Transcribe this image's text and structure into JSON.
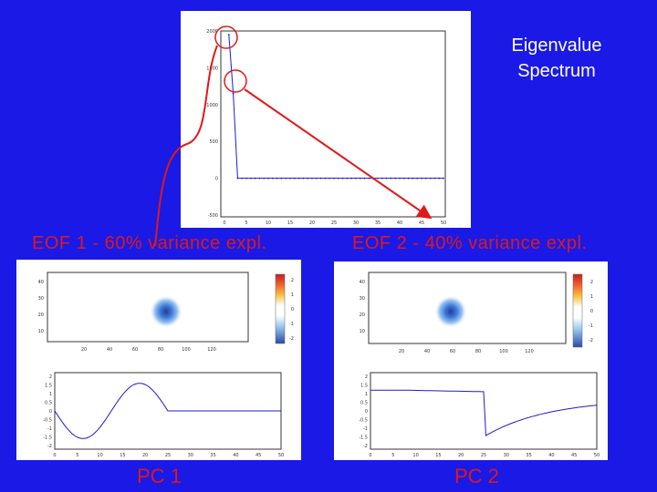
{
  "spectrum_panel": {
    "title_line1": "Eigenvalue",
    "title_line2": "Spectrum",
    "y_ticks": [
      "2000",
      "1500",
      "1000",
      "500",
      "0",
      "-500"
    ],
    "x_ticks": [
      "0",
      "5",
      "10",
      "15",
      "20",
      "25",
      "30",
      "35",
      "40",
      "45",
      "50"
    ],
    "series_color": "#1c1cd0"
  },
  "eof1": {
    "label": "EOF 1 - 60% variance expl.",
    "map_y_ticks": [
      "40",
      "30",
      "20",
      "10"
    ],
    "map_x_ticks": [
      "20",
      "40",
      "60",
      "80",
      "100",
      "120"
    ],
    "colorbar_ticks": [
      "2",
      "1",
      "0",
      "-1",
      "-2"
    ]
  },
  "eof2": {
    "label": "EOF 2 - 40% variance expl.",
    "map_y_ticks": [
      "40",
      "30",
      "20",
      "10"
    ],
    "map_x_ticks": [
      "20",
      "40",
      "60",
      "80",
      "100",
      "120"
    ],
    "colorbar_ticks": [
      "2",
      "1",
      "0",
      "-1",
      "-2"
    ]
  },
  "pc1": {
    "label": "PC 1",
    "y_ticks": [
      "2",
      "1.5",
      "1",
      "0.5",
      "0",
      "-0.5",
      "-1",
      "-1.5",
      "-2"
    ],
    "x_ticks": [
      "0",
      "5",
      "10",
      "15",
      "20",
      "25",
      "30",
      "35",
      "40",
      "45",
      "50"
    ]
  },
  "pc2": {
    "label": "PC 2",
    "y_ticks": [
      "2",
      "1.5",
      "1",
      "0.5",
      "0",
      "-0.5",
      "-1",
      "-1.5",
      "-2"
    ],
    "x_ticks": [
      "0",
      "5",
      "10",
      "15",
      "20",
      "25",
      "30",
      "35",
      "40",
      "45",
      "50"
    ]
  },
  "colors": {
    "background": "#1a19e6",
    "annotation_red": "#e01818",
    "line_blue": "#1c1cd0"
  }
}
